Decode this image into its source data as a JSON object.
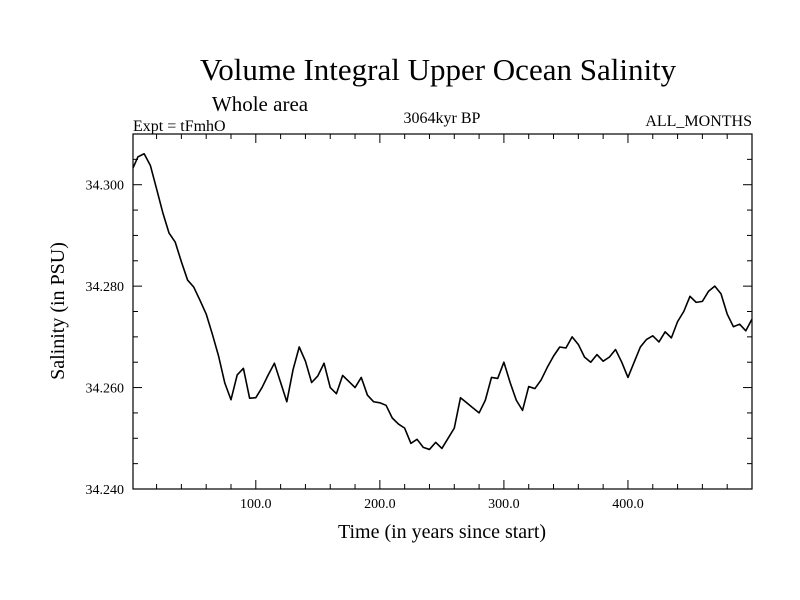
{
  "chart_data": {
    "type": "line",
    "title": "Volume Integral Upper Ocean Salinity",
    "subtitle": "Whole area",
    "left_label": "Expt = tFmhO",
    "center_label": "3064kyr BP",
    "right_label": "ALL_MONTHS",
    "xlabel": "Time (in years since start)",
    "ylabel": "Salinity (in PSU)",
    "xlim": [
      1,
      500
    ],
    "ylim": [
      34.24,
      34.31
    ],
    "x_ticks": [
      {
        "value": 100,
        "label": "100.0"
      },
      {
        "value": 200,
        "label": "200.0"
      },
      {
        "value": 300,
        "label": "300.0"
      },
      {
        "value": 400,
        "label": "400.0"
      }
    ],
    "y_ticks": [
      {
        "value": 34.24,
        "label": "34.240"
      },
      {
        "value": 34.26,
        "label": "34.260"
      },
      {
        "value": 34.28,
        "label": "34.280"
      },
      {
        "value": 34.3,
        "label": "34.300"
      }
    ],
    "series": [
      {
        "name": "Salinity",
        "x": [
          1,
          5,
          10,
          15,
          20,
          25,
          30,
          35,
          40,
          45,
          50,
          55,
          60,
          65,
          70,
          75,
          80,
          85,
          90,
          95,
          100,
          105,
          110,
          115,
          120,
          125,
          130,
          135,
          140,
          145,
          150,
          155,
          160,
          165,
          170,
          175,
          180,
          185,
          190,
          195,
          200,
          205,
          210,
          215,
          220,
          225,
          230,
          235,
          240,
          245,
          250,
          255,
          260,
          265,
          270,
          275,
          280,
          285,
          290,
          295,
          300,
          305,
          310,
          315,
          320,
          325,
          330,
          335,
          340,
          345,
          350,
          355,
          360,
          365,
          370,
          375,
          380,
          385,
          390,
          395,
          400,
          405,
          410,
          415,
          420,
          425,
          430,
          435,
          440,
          445,
          450,
          455,
          460,
          465,
          470,
          475,
          480,
          485,
          490,
          495,
          500
        ],
        "values": [
          34.3033,
          34.3055,
          34.3061,
          34.3038,
          34.2992,
          34.2945,
          34.2905,
          34.2887,
          34.2848,
          34.2812,
          34.2798,
          34.2772,
          34.2745,
          34.2705,
          34.2662,
          34.2609,
          34.2576,
          34.2625,
          34.2638,
          34.2579,
          34.258,
          34.26,
          34.2625,
          34.2648,
          34.261,
          34.2572,
          34.2635,
          34.268,
          34.2652,
          34.261,
          34.2623,
          34.2648,
          34.26,
          34.2588,
          34.2624,
          34.2612,
          34.26,
          34.262,
          34.2585,
          34.2572,
          34.257,
          34.2565,
          34.254,
          34.2528,
          34.252,
          34.249,
          34.2498,
          34.2482,
          34.2478,
          34.2492,
          34.248,
          34.25,
          34.252,
          34.258,
          34.257,
          34.256,
          34.255,
          34.2575,
          34.262,
          34.2618,
          34.265,
          34.261,
          34.2575,
          34.2555,
          34.2602,
          34.2598,
          34.2615,
          34.264,
          34.2662,
          34.268,
          34.2678,
          34.27,
          34.2685,
          34.266,
          34.265,
          34.2665,
          34.2652,
          34.266,
          34.2675,
          34.265,
          34.262,
          34.265,
          34.268,
          34.2695,
          34.2702,
          34.269,
          34.271,
          34.2698,
          34.273,
          34.275,
          34.278,
          34.2768,
          34.277,
          34.279,
          34.28,
          34.2785,
          34.2745,
          34.272,
          34.2725,
          34.2712,
          34.2735
        ]
      }
    ]
  }
}
